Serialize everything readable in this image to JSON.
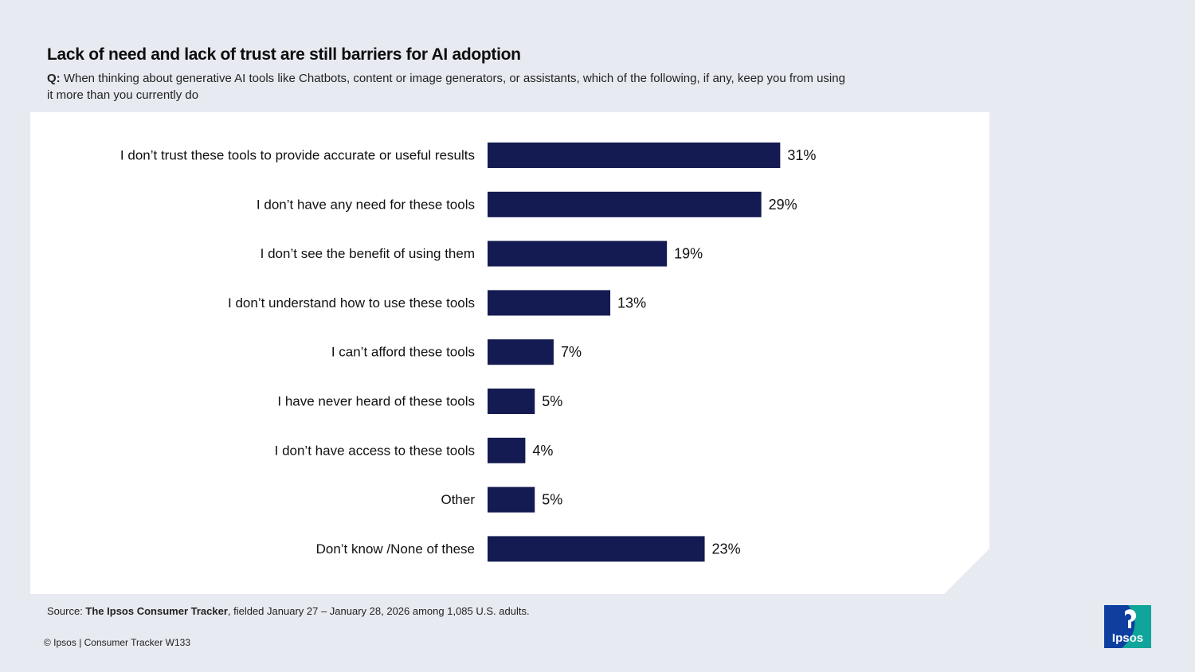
{
  "header": {
    "title": "Lack of need and lack of trust are still barriers for AI adoption",
    "question_prefix": "Q:",
    "question_text": "When thinking about generative AI tools like Chatbots, content or image generators, or assistants, which of the following, if any, keep you from using it more than you currently do"
  },
  "chart_data": {
    "type": "bar",
    "orientation": "horizontal",
    "categories": [
      "I don’t trust these tools to provide accurate or useful results",
      "I don’t have any need for these tools",
      "I don’t see the benefit of using them",
      "I don’t understand how to use these tools",
      "I can’t afford these tools",
      "I have never heard of these tools",
      "I don’t have access to these tools",
      "Other",
      "Don’t know /None of these"
    ],
    "values": [
      31,
      29,
      19,
      13,
      7,
      5,
      4,
      5,
      23
    ],
    "value_labels": [
      "31%",
      "29%",
      "19%",
      "13%",
      "7%",
      "5%",
      "4%",
      "5%",
      "23%"
    ],
    "unit": "%",
    "xlim": [
      0,
      100
    ],
    "grid": false,
    "bar_color": "#141b52"
  },
  "footer": {
    "source_prefix": "Source: ",
    "source_name": "The Ipsos Consumer Tracker",
    "source_rest": ", fielded January 27 – January 28, 2026 among 1,085 U.S. adults.",
    "copyright": "© Ipsos | Consumer Tracker W133",
    "logo_text": "Ipsos"
  },
  "colors": {
    "background": "#e7eaf0",
    "panel": "#ffffff",
    "logo_blue": "#0e3ea0",
    "logo_teal": "#0fa59b"
  }
}
